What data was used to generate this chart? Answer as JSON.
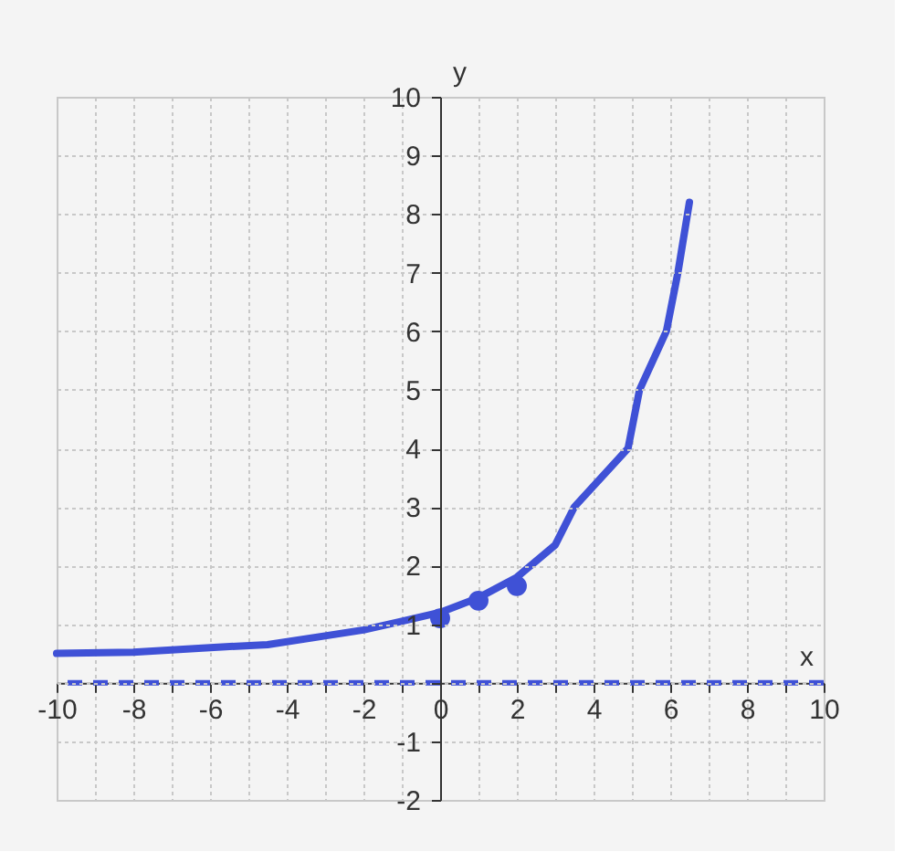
{
  "chart_data": {
    "type": "line",
    "xlabel": "x",
    "ylabel": "y",
    "series": [
      {
        "color": "#3f51d6",
        "x": [
          -10,
          -8,
          -6,
          -4.5,
          -3,
          -2,
          -1,
          0,
          1,
          2,
          3,
          3.5,
          4.9,
          5.2,
          5.9,
          6.2,
          6.5
        ],
        "values": [
          0.5,
          0.52,
          0.6,
          0.65,
          0.8,
          0.9,
          1.05,
          1.2,
          1.45,
          1.8,
          2.35,
          3,
          4,
          5,
          6,
          7,
          8.2
        ]
      },
      {
        "type": "scatter",
        "marker": "circle",
        "color": "#3f51d6",
        "x": [
          0,
          1,
          2
        ],
        "values": [
          1.1,
          1.4,
          1.65
        ]
      }
    ],
    "ref_lines": [
      {
        "axis": "y",
        "value": 0,
        "color": "#3f51d6",
        "line_style": "dashed"
      }
    ],
    "xlim": [
      -10,
      10
    ],
    "ylim": [
      -2,
      10
    ],
    "xticks": [
      -10,
      {
        "value": -9,
        "label": null
      },
      -8,
      {
        "value": -7,
        "label": null
      },
      -6,
      {
        "value": -5,
        "label": null
      },
      -4,
      {
        "value": -3,
        "label": null
      },
      -2,
      {
        "value": -1,
        "label": null
      },
      0,
      {
        "value": 1,
        "label": null
      },
      2,
      {
        "value": 3,
        "label": null
      },
      4,
      {
        "value": 5,
        "label": null
      },
      6,
      {
        "value": 7,
        "label": null
      },
      8,
      {
        "value": 9,
        "label": null
      },
      10
    ],
    "yticks": [
      -2,
      -1,
      {
        "value": 0,
        "label": null
      },
      1,
      2,
      3,
      4,
      5,
      6,
      7,
      8,
      9,
      10
    ],
    "grid": true,
    "marker": "none",
    "line_style": "solid"
  }
}
